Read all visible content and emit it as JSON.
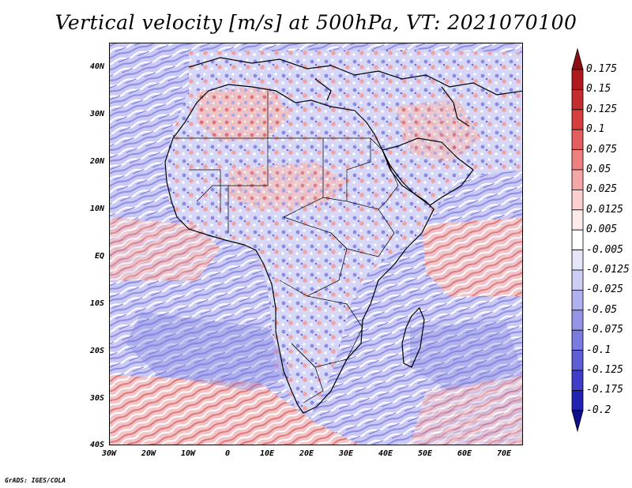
{
  "title": "Vertical velocity [m/s] at 500hPa, VT: 2021070100",
  "credit": "GrADS: IGES/COLA",
  "map": {
    "lat_labels": [
      "40N",
      "30N",
      "20N",
      "10N",
      "EQ",
      "10S",
      "20S",
      "30S",
      "40S"
    ],
    "lon_labels": [
      "30W",
      "20W",
      "10W",
      "0",
      "10E",
      "20E",
      "30E",
      "40E",
      "50E",
      "60E",
      "70E"
    ],
    "lon_range": [
      -30,
      75
    ],
    "lat_range": [
      -40,
      45
    ]
  },
  "colorbar": {
    "labels": [
      "0.175",
      "0.15",
      "0.125",
      "0.1",
      "0.075",
      "0.05",
      "0.025",
      "0.0125",
      "0.005",
      "-0.005",
      "-0.0125",
      "-0.025",
      "-0.05",
      "-0.075",
      "-0.1",
      "-0.125",
      "-0.175",
      "-0.2"
    ],
    "colors": [
      "#8b0e12",
      "#b01a1e",
      "#c42d2d",
      "#d63f3f",
      "#e45e5e",
      "#ee8080",
      "#f5a6a6",
      "#fbcfcf",
      "#fdebeb",
      "#ffffff",
      "#e6e6fb",
      "#cdcdf5",
      "#b1b1f0",
      "#9595e8",
      "#7a7adf",
      "#5e5ed6",
      "#3e3ec8",
      "#2222b4",
      "#0e0e8a"
    ]
  },
  "colors": {
    "warm": "#d94848",
    "cool": "#6a6ae0",
    "land_border": "#000000"
  }
}
